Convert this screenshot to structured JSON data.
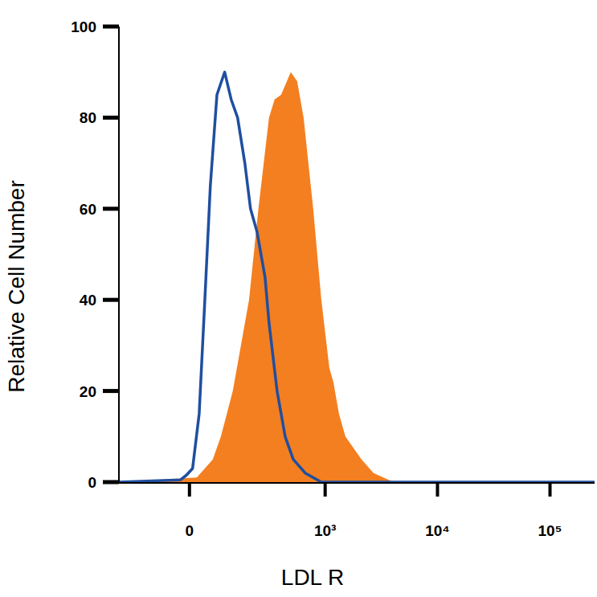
{
  "chart_data": {
    "type": "line",
    "xlabel": "LDL R",
    "ylabel": "Relative Cell Number",
    "log": "x",
    "xlim": [
      -250,
      249000
    ],
    "xticks": [
      0,
      {
        "value": 1000,
        "label": "10³"
      },
      {
        "value": 10000,
        "label": "10⁴"
      },
      {
        "value": 100000,
        "label": "10⁵"
      }
    ],
    "ylim": [
      0,
      100
    ],
    "yticks": [
      0,
      20,
      40,
      60,
      80,
      100
    ],
    "series": [
      {
        "type": "area",
        "color": "#f47f20",
        "x": [
          -250,
          19,
          62,
          86,
          126,
          193,
          241,
          306,
          346,
          398,
          489,
          559,
          640,
          781,
          924,
          1091,
          1184,
          1329,
          1517,
          2109,
          2700,
          4075,
          249000
        ],
        "values": [
          0,
          1,
          5,
          10,
          20,
          40,
          60,
          80,
          84,
          85,
          90,
          88,
          80,
          60,
          40,
          25,
          22,
          15,
          10,
          5,
          2,
          0,
          0
        ]
      },
      {
        "type": "line",
        "color": "#1f4fa0",
        "x": [
          -250,
          -23,
          -8,
          8,
          25,
          40,
          55,
          74,
          98,
          120,
          144,
          174,
          200,
          233,
          280,
          306,
          365,
          434,
          515,
          661,
          924,
          249000
        ],
        "values": [
          0,
          0.5,
          1.5,
          3,
          15,
          40,
          65,
          85,
          90,
          84,
          80,
          70,
          60,
          55,
          45,
          35,
          20,
          10,
          5,
          2,
          0,
          0
        ]
      }
    ]
  }
}
